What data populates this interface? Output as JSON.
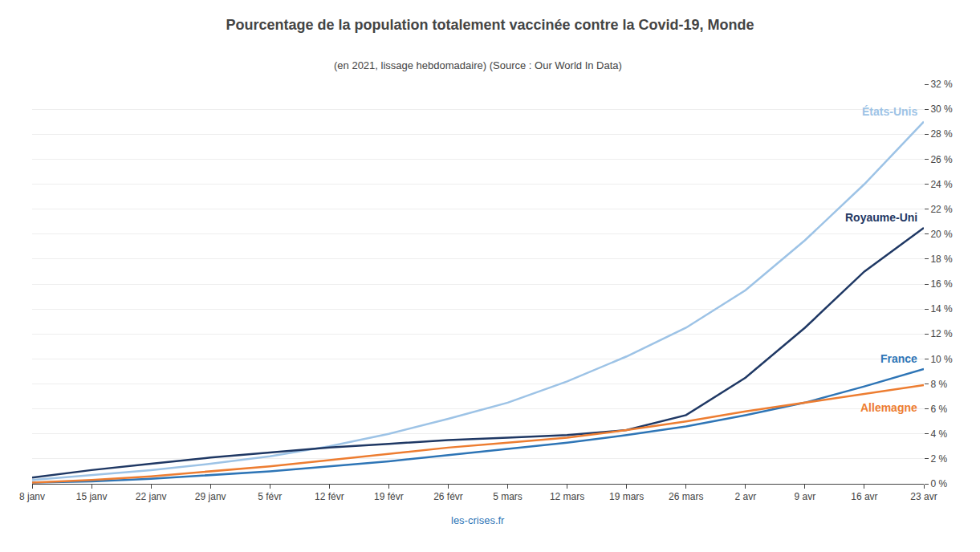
{
  "chart_data": {
    "type": "line",
    "title": "Pourcentage de la population totalement vaccinée contre la Covid-19, Monde",
    "subtitle": "(en 2021, lissage hebdomadaire) (Source : Our World In Data)",
    "annotations": [
      "les-crises.fr"
    ],
    "categories": [
      "8 janv",
      "15 janv",
      "22 janv",
      "29 janv",
      "5 févr",
      "12 févr",
      "19 févr",
      "26 févr",
      "5 mars",
      "12 mars",
      "19 mars",
      "26 mars",
      "2 avr",
      "9 avr",
      "16 avr",
      "23 avr"
    ],
    "series": [
      {
        "name": "États-Unis",
        "color": "#9dc3e6",
        "values": [
          0.3,
          0.7,
          1.1,
          1.6,
          2.2,
          3.0,
          4.0,
          5.2,
          6.5,
          8.2,
          10.2,
          12.5,
          15.5,
          19.5,
          24.0,
          29.0
        ]
      },
      {
        "name": "Royaume-Uni",
        "color": "#1f3864",
        "values": [
          0.5,
          1.1,
          1.6,
          2.1,
          2.5,
          2.9,
          3.2,
          3.5,
          3.7,
          3.9,
          4.3,
          5.5,
          8.5,
          12.5,
          17.0,
          20.5
        ]
      },
      {
        "name": "France",
        "color": "#2e75b6",
        "values": [
          0.1,
          0.2,
          0.4,
          0.7,
          1.0,
          1.4,
          1.8,
          2.3,
          2.8,
          3.3,
          3.9,
          4.6,
          5.5,
          6.5,
          7.8,
          9.2
        ]
      },
      {
        "name": "Allemagne",
        "color": "#ed7d31",
        "values": [
          0.1,
          0.3,
          0.6,
          1.0,
          1.4,
          1.9,
          2.4,
          2.9,
          3.3,
          3.7,
          4.3,
          5.0,
          5.8,
          6.5,
          7.2,
          7.9
        ]
      }
    ],
    "ylim": [
      0,
      32
    ],
    "yticks": [
      {
        "value": 0,
        "label": "0 %"
      },
      {
        "value": 2,
        "label": "2 %"
      },
      {
        "value": 4,
        "label": "4 %"
      },
      {
        "value": 6,
        "label": "6 %"
      },
      {
        "value": 8,
        "label": "8 %"
      },
      {
        "value": 10,
        "label": "10 %"
      },
      {
        "value": 12,
        "label": "12 %"
      },
      {
        "value": 14,
        "label": "14 %"
      },
      {
        "value": 16,
        "label": "16 %"
      },
      {
        "value": 18,
        "label": "18 %"
      },
      {
        "value": 20,
        "label": "20 %"
      },
      {
        "value": 22,
        "label": "22 %"
      },
      {
        "value": 24,
        "label": "24 %"
      },
      {
        "value": 26,
        "label": "26 %"
      },
      {
        "value": 28,
        "label": "28 %"
      },
      {
        "value": 30,
        "label": "30 %"
      },
      {
        "value": 32,
        "label": "32 %"
      }
    ],
    "grid": true
  }
}
